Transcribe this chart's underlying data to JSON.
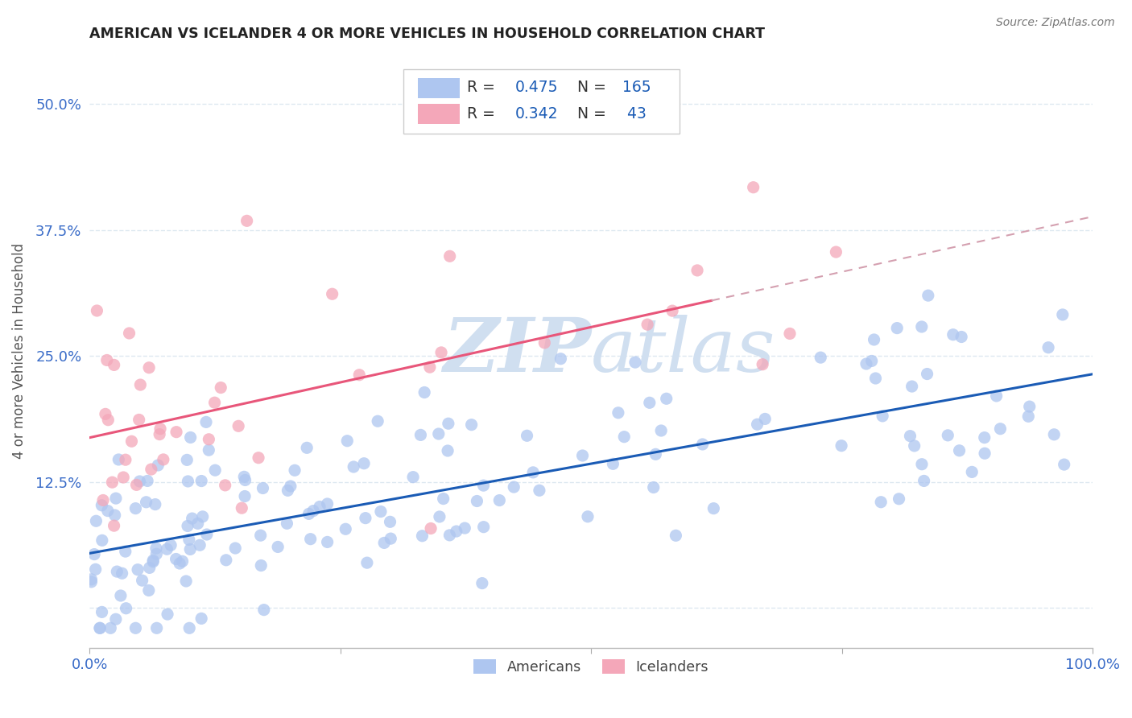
{
  "title": "AMERICAN VS ICELANDER 4 OR MORE VEHICLES IN HOUSEHOLD CORRELATION CHART",
  "source": "Source: ZipAtlas.com",
  "ylabel": "4 or more Vehicles in Household",
  "xlim": [
    0.0,
    1.0
  ],
  "ylim": [
    -0.04,
    0.55
  ],
  "yticks": [
    0.0,
    0.125,
    0.25,
    0.375,
    0.5
  ],
  "ytick_labels": [
    "",
    "12.5%",
    "25.0%",
    "37.5%",
    "50.0%"
  ],
  "xticks": [
    0.0,
    0.25,
    0.5,
    0.75,
    1.0
  ],
  "xtick_labels": [
    "0.0%",
    "",
    "",
    "",
    "100.0%"
  ],
  "americans_color": "#aec6f0",
  "icelanders_color": "#f4a7b9",
  "americans_line_color": "#1a5bb5",
  "icelanders_line_color": "#e8567a",
  "icelanders_dash_color": "#d4a0b0",
  "watermark_color": "#d0dff0",
  "background_color": "#ffffff",
  "grid_color": "#dde8f0",
  "americans_R": 0.475,
  "americans_N": 165,
  "icelanders_R": 0.342,
  "icelanders_N": 43,
  "am_intercept": 0.048,
  "am_slope": 0.175,
  "ic_intercept": 0.155,
  "ic_slope": 0.27,
  "am_noise": 0.048,
  "ic_noise": 0.07,
  "am_seed": 99,
  "ic_seed": 5
}
